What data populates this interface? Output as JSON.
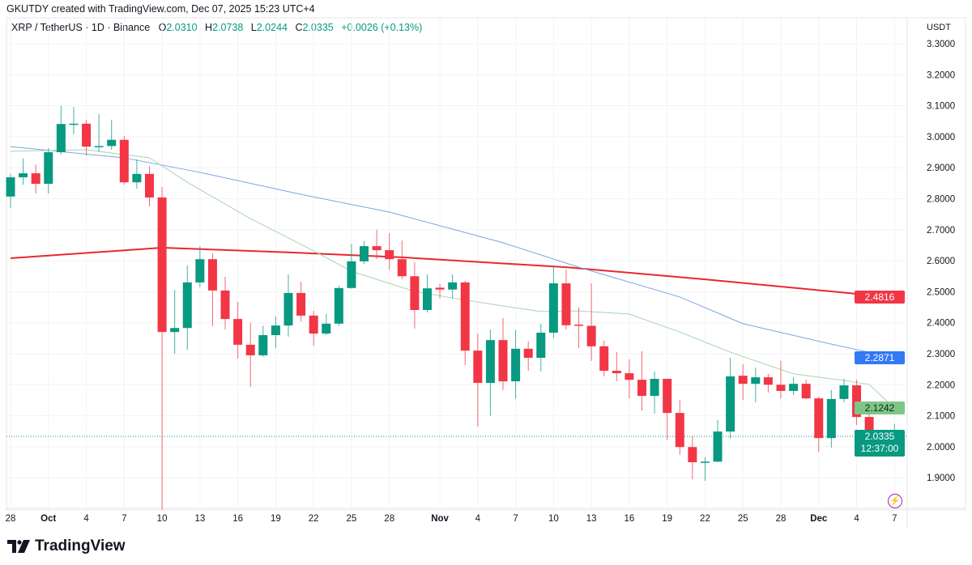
{
  "credit": "GKUTDY created with TradingView.com, Dec 07, 2025 15:23 UTC+4",
  "legend": {
    "symbol": "XRP / TetherUS · 1D · Binance",
    "open_label": "O",
    "open": "2.0310",
    "high_label": "H",
    "high": "2.0738",
    "low_label": "L",
    "low": "2.0244",
    "close_label": "C",
    "close": "2.0335",
    "change": "+0.0026 (+0.13%)"
  },
  "price_axis": {
    "unit": "USDT"
  },
  "tags": {
    "ma_red": "2.4816",
    "ma_blue": "2.2871",
    "ma_green": "2.1242",
    "last_price": "2.0335",
    "countdown": "12:37:00"
  },
  "logo": "TradingView",
  "icons": {
    "alert": "lightning-icon",
    "logo": "tradingview-logo-icon"
  },
  "colors": {
    "up": "#089981",
    "down": "#f23645",
    "ma_red": "#e8282f",
    "ma_blue": "#7aa3e6",
    "ma_green": "#a8d5ab",
    "tag_blue": "#3179f5",
    "tag_green": "#7fc587"
  },
  "chart_data": {
    "type": "candlestick",
    "title": "XRP / TetherUS · 1D · Binance",
    "ylim": [
      1.85,
      3.35
    ],
    "grid": true,
    "y_ticks": [
      "3.3000",
      "3.2000",
      "3.1000",
      "3.0000",
      "2.9000",
      "2.8000",
      "2.7000",
      "2.6000",
      "2.5000",
      "2.4000",
      "2.3000",
      "2.2000",
      "2.1000",
      "2.0000",
      "1.9000"
    ],
    "x_ticks": [
      {
        "date": "2025-09-28",
        "label": "28"
      },
      {
        "date": "2025-10-01",
        "label": "Oct",
        "bold": true
      },
      {
        "date": "2025-10-04",
        "label": "4"
      },
      {
        "date": "2025-10-07",
        "label": "7"
      },
      {
        "date": "2025-10-10",
        "label": "10"
      },
      {
        "date": "2025-10-13",
        "label": "13"
      },
      {
        "date": "2025-10-16",
        "label": "16"
      },
      {
        "date": "2025-10-19",
        "label": "19"
      },
      {
        "date": "2025-10-22",
        "label": "22"
      },
      {
        "date": "2025-10-25",
        "label": "25"
      },
      {
        "date": "2025-10-28",
        "label": "28"
      },
      {
        "date": "2025-11-01",
        "label": "Nov",
        "bold": true
      },
      {
        "date": "2025-11-04",
        "label": "4"
      },
      {
        "date": "2025-11-07",
        "label": "7"
      },
      {
        "date": "2025-11-10",
        "label": "10"
      },
      {
        "date": "2025-11-13",
        "label": "13"
      },
      {
        "date": "2025-11-16",
        "label": "16"
      },
      {
        "date": "2025-11-19",
        "label": "19"
      },
      {
        "date": "2025-11-22",
        "label": "22"
      },
      {
        "date": "2025-11-25",
        "label": "25"
      },
      {
        "date": "2025-11-28",
        "label": "28"
      },
      {
        "date": "2025-12-01",
        "label": "Dec",
        "bold": true
      },
      {
        "date": "2025-12-04",
        "label": "4"
      },
      {
        "date": "2025-12-07",
        "label": "7"
      }
    ],
    "candles_columns": [
      "date",
      "open",
      "high",
      "low",
      "close"
    ],
    "candles": [
      [
        "2025-09-28",
        2.807,
        2.88,
        2.77,
        2.869
      ],
      [
        "2025-09-29",
        2.869,
        2.93,
        2.845,
        2.882
      ],
      [
        "2025-09-30",
        2.882,
        2.91,
        2.817,
        2.848
      ],
      [
        "2025-10-01",
        2.848,
        2.963,
        2.817,
        2.95
      ],
      [
        "2025-10-02",
        2.95,
        3.1,
        2.942,
        3.041
      ],
      [
        "2025-10-03",
        3.041,
        3.096,
        3.008,
        3.042
      ],
      [
        "2025-10-04",
        3.042,
        3.055,
        2.94,
        2.968
      ],
      [
        "2025-10-05",
        2.968,
        3.073,
        2.95,
        2.97
      ],
      [
        "2025-10-06",
        2.97,
        3.055,
        2.958,
        2.99
      ],
      [
        "2025-10-07",
        2.99,
        3.002,
        2.845,
        2.853
      ],
      [
        "2025-10-08",
        2.853,
        2.927,
        2.832,
        2.88
      ],
      [
        "2025-10-09",
        2.88,
        2.905,
        2.775,
        2.804
      ],
      [
        "2025-10-10",
        2.804,
        2.838,
        1.796,
        2.37
      ],
      [
        "2025-10-11",
        2.37,
        2.506,
        2.3,
        2.383
      ],
      [
        "2025-10-12",
        2.383,
        2.585,
        2.313,
        2.53
      ],
      [
        "2025-10-13",
        2.53,
        2.647,
        2.514,
        2.605
      ],
      [
        "2025-10-14",
        2.605,
        2.624,
        2.389,
        2.504
      ],
      [
        "2025-10-15",
        2.504,
        2.548,
        2.378,
        2.412
      ],
      [
        "2025-10-16",
        2.412,
        2.467,
        2.284,
        2.329
      ],
      [
        "2025-10-17",
        2.329,
        2.4,
        2.193,
        2.295
      ],
      [
        "2025-10-18",
        2.295,
        2.39,
        2.29,
        2.36
      ],
      [
        "2025-10-19",
        2.36,
        2.42,
        2.318,
        2.391
      ],
      [
        "2025-10-20",
        2.391,
        2.556,
        2.355,
        2.496
      ],
      [
        "2025-10-21",
        2.496,
        2.532,
        2.404,
        2.423
      ],
      [
        "2025-10-22",
        2.423,
        2.438,
        2.326,
        2.365
      ],
      [
        "2025-10-23",
        2.365,
        2.428,
        2.36,
        2.397
      ],
      [
        "2025-10-24",
        2.397,
        2.52,
        2.39,
        2.512
      ],
      [
        "2025-10-25",
        2.512,
        2.655,
        2.51,
        2.598
      ],
      [
        "2025-10-26",
        2.598,
        2.663,
        2.59,
        2.647
      ],
      [
        "2025-10-27",
        2.647,
        2.7,
        2.605,
        2.634
      ],
      [
        "2025-10-28",
        2.634,
        2.689,
        2.57,
        2.605
      ],
      [
        "2025-10-29",
        2.605,
        2.665,
        2.54,
        2.55
      ],
      [
        "2025-10-30",
        2.55,
        2.595,
        2.381,
        2.441
      ],
      [
        "2025-10-31",
        2.441,
        2.556,
        2.433,
        2.511
      ],
      [
        "2025-11-01",
        2.513,
        2.525,
        2.478,
        2.507
      ],
      [
        "2025-11-02",
        2.507,
        2.556,
        2.478,
        2.53
      ],
      [
        "2025-11-03",
        2.53,
        2.535,
        2.263,
        2.31
      ],
      [
        "2025-11-04",
        2.31,
        2.365,
        2.065,
        2.206
      ],
      [
        "2025-11-05",
        2.206,
        2.378,
        2.1,
        2.344
      ],
      [
        "2025-11-06",
        2.344,
        2.415,
        2.183,
        2.211
      ],
      [
        "2025-11-07",
        2.211,
        2.376,
        2.155,
        2.316
      ],
      [
        "2025-11-08",
        2.316,
        2.34,
        2.245,
        2.287
      ],
      [
        "2025-11-09",
        2.287,
        2.397,
        2.243,
        2.368
      ],
      [
        "2025-11-10",
        2.368,
        2.582,
        2.35,
        2.527
      ],
      [
        "2025-11-11",
        2.527,
        2.572,
        2.378,
        2.392
      ],
      [
        "2025-11-12",
        2.394,
        2.45,
        2.318,
        2.39
      ],
      [
        "2025-11-13",
        2.39,
        2.527,
        2.277,
        2.324
      ],
      [
        "2025-11-14",
        2.324,
        2.342,
        2.227,
        2.245
      ],
      [
        "2025-11-15",
        2.245,
        2.305,
        2.211,
        2.237
      ],
      [
        "2025-11-16",
        2.237,
        2.282,
        2.156,
        2.216
      ],
      [
        "2025-11-17",
        2.216,
        2.308,
        2.117,
        2.164
      ],
      [
        "2025-11-18",
        2.164,
        2.243,
        2.107,
        2.219
      ],
      [
        "2025-11-19",
        2.219,
        2.219,
        2.023,
        2.109
      ],
      [
        "2025-11-20",
        2.109,
        2.151,
        1.974,
        1.999
      ],
      [
        "2025-11-21",
        1.999,
        2.034,
        1.895,
        1.95
      ],
      [
        "2025-11-22",
        1.95,
        1.966,
        1.89,
        1.952
      ],
      [
        "2025-11-23",
        1.952,
        2.086,
        1.95,
        2.049
      ],
      [
        "2025-11-24",
        2.049,
        2.287,
        2.026,
        2.227
      ],
      [
        "2025-11-25",
        2.229,
        2.266,
        2.151,
        2.203
      ],
      [
        "2025-11-26",
        2.203,
        2.255,
        2.143,
        2.224
      ],
      [
        "2025-11-27",
        2.224,
        2.235,
        2.175,
        2.2
      ],
      [
        "2025-11-28",
        2.2,
        2.277,
        2.156,
        2.18
      ],
      [
        "2025-11-29",
        2.18,
        2.224,
        2.167,
        2.203
      ],
      [
        "2025-11-30",
        2.203,
        2.216,
        2.153,
        2.156
      ],
      [
        "2025-12-01",
        2.156,
        2.162,
        1.984,
        2.028
      ],
      [
        "2025-12-02",
        2.028,
        2.183,
        1.997,
        2.154
      ],
      [
        "2025-12-03",
        2.154,
        2.219,
        2.143,
        2.198
      ],
      [
        "2025-12-04",
        2.198,
        2.216,
        2.07,
        2.096
      ],
      [
        "2025-12-05",
        2.096,
        2.112,
        2.013,
        2.034
      ],
      [
        "2025-12-06",
        2.04,
        2.05,
        2.015,
        2.031
      ],
      [
        "2025-12-07",
        2.031,
        2.0738,
        2.0244,
        2.0335
      ]
    ],
    "moving_averages": [
      {
        "color": "#e8282f",
        "width": 2,
        "last": 2.4816,
        "points": [
          [
            "2025-09-28",
            2.608
          ],
          [
            "2025-10-10",
            2.642
          ],
          [
            "2025-10-20",
            2.627
          ],
          [
            "2025-10-29",
            2.611
          ],
          [
            "2025-11-11",
            2.579
          ],
          [
            "2025-11-22",
            2.54
          ],
          [
            "2025-12-07",
            2.4816
          ]
        ]
      },
      {
        "color": "#7aa3e6",
        "width": 1,
        "last": 2.2871,
        "points": [
          [
            "2025-09-28",
            2.968
          ],
          [
            "2025-10-07",
            2.932
          ],
          [
            "2025-10-13",
            2.885
          ],
          [
            "2025-10-21",
            2.814
          ],
          [
            "2025-10-28",
            2.757
          ],
          [
            "2025-11-06",
            2.658
          ],
          [
            "2025-11-12",
            2.579
          ],
          [
            "2025-11-20",
            2.483
          ],
          [
            "2025-11-25",
            2.397
          ],
          [
            "2025-12-02",
            2.331
          ],
          [
            "2025-12-07",
            2.2871
          ]
        ]
      },
      {
        "color": "#a8d5ab",
        "width": 1,
        "last": 2.1242,
        "points": [
          [
            "2025-09-28",
            2.953
          ],
          [
            "2025-10-04",
            2.958
          ],
          [
            "2025-10-09",
            2.932
          ],
          [
            "2025-10-12",
            2.853
          ],
          [
            "2025-10-17",
            2.736
          ],
          [
            "2025-10-22",
            2.632
          ],
          [
            "2025-10-25",
            2.566
          ],
          [
            "2025-10-30",
            2.501
          ],
          [
            "2025-11-02",
            2.48
          ],
          [
            "2025-11-06",
            2.454
          ],
          [
            "2025-11-09",
            2.436
          ],
          [
            "2025-11-12",
            2.438
          ],
          [
            "2025-11-16",
            2.428
          ],
          [
            "2025-11-20",
            2.37
          ],
          [
            "2025-11-24",
            2.305
          ],
          [
            "2025-11-29",
            2.235
          ],
          [
            "2025-12-03",
            2.214
          ],
          [
            "2025-12-05",
            2.201
          ],
          [
            "2025-12-07",
            2.1242
          ]
        ]
      }
    ],
    "last_price": 2.0335
  }
}
